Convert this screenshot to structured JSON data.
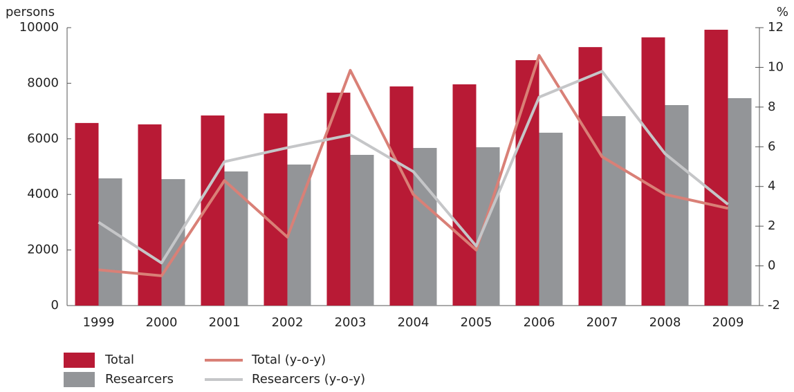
{
  "chart_data": {
    "type": "bar",
    "y_label": "persons",
    "y2_label": "%",
    "categories": [
      "1999",
      "2000",
      "2001",
      "2002",
      "2003",
      "2004",
      "2005",
      "2006",
      "2007",
      "2008",
      "2009"
    ],
    "series": [
      {
        "name": "Total",
        "type": "bar",
        "color": "#b81a35",
        "values": [
          6570,
          6520,
          6840,
          6915,
          7660,
          7885,
          7960,
          8830,
          9300,
          9650,
          9925
        ]
      },
      {
        "name": "Researcers",
        "type": "bar",
        "color": "#939598",
        "values": [
          4577,
          4550,
          4826,
          5075,
          5423,
          5672,
          5697,
          6220,
          6816,
          7214,
          7463
        ]
      },
      {
        "name": "Total (y-o-y)",
        "type": "line",
        "axis": "y2",
        "color": "#d98077",
        "values": [
          -0.2,
          -0.5,
          4.3,
          1.45,
          9.85,
          3.6,
          0.8,
          10.6,
          5.5,
          3.6,
          2.9
        ]
      },
      {
        "name": "Researcers (y-o-y)",
        "type": "line",
        "axis": "y2",
        "color": "#c5c6c8",
        "values": [
          2.2,
          0.15,
          5.25,
          5.95,
          6.6,
          4.75,
          1.0,
          8.5,
          9.8,
          5.65,
          3.1
        ]
      }
    ],
    "ylim": [
      0,
      10000
    ],
    "yticks": [
      0,
      2000,
      4000,
      6000,
      8000,
      10000
    ],
    "y2lim": [
      -2,
      12
    ],
    "y2ticks": [
      -2,
      0,
      2,
      4,
      6,
      8,
      10,
      12
    ],
    "grid": false
  }
}
